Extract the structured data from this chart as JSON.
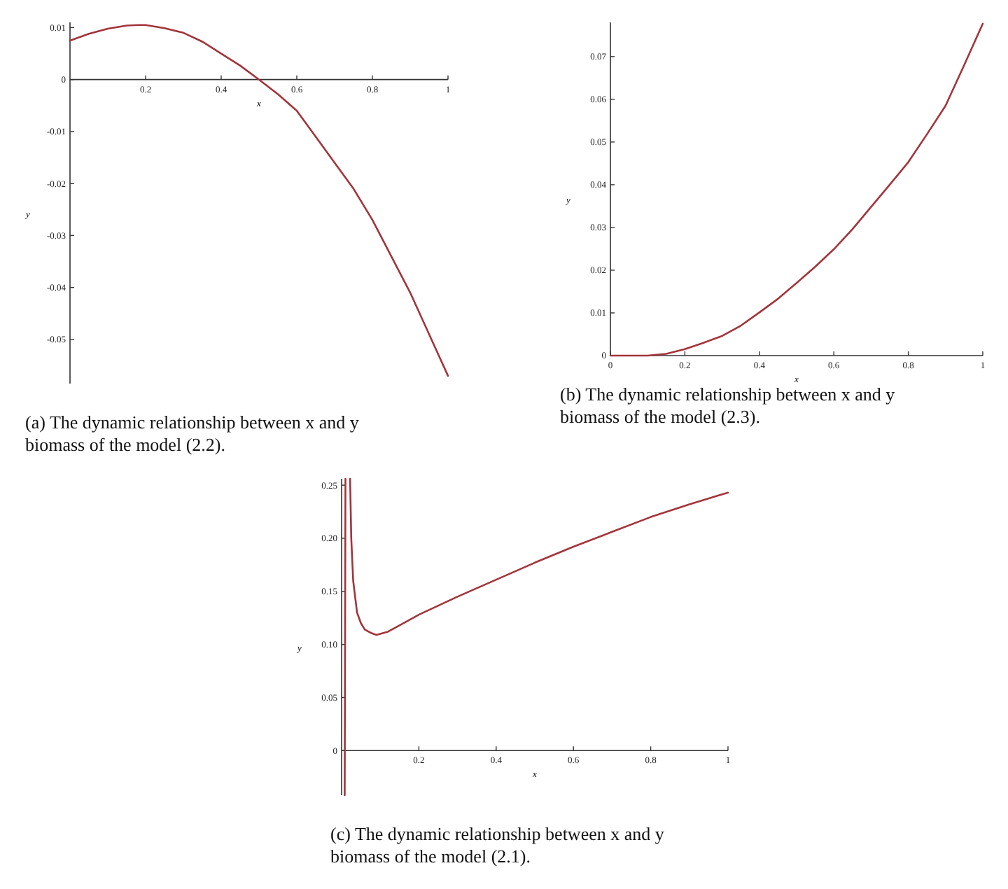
{
  "chart_data": [
    {
      "type": "line",
      "title": "(a) The dynamic relationship between x and y biomass of the model (2.2).",
      "xlabel": "x",
      "ylabel": "y",
      "xlim": [
        0,
        1
      ],
      "ylim": [
        -0.0585,
        0.011
      ],
      "xticks": [
        0.2,
        0.4,
        0.6,
        0.8,
        1
      ],
      "yticks": [
        0.01,
        0,
        -0.01,
        -0.02,
        -0.03,
        -0.04,
        -0.05
      ],
      "series": [
        {
          "color": "#a3343b",
          "x": [
            0,
            0.05,
            0.1,
            0.15,
            0.18,
            0.2,
            0.25,
            0.3,
            0.35,
            0.4,
            0.45,
            0.5,
            0.55,
            0.6,
            0.65,
            0.7,
            0.75,
            0.8,
            0.85,
            0.9,
            0.95,
            1
          ],
          "values": [
            0.0075,
            0.0088,
            0.0098,
            0.0104,
            0.0105,
            0.0105,
            0.0099,
            0.009,
            0.0073,
            0.005,
            0.0027,
            0,
            -0.0028,
            -0.006,
            -0.011,
            -0.016,
            -0.021,
            -0.027,
            -0.034,
            -0.041,
            -0.049,
            -0.057
          ]
        }
      ]
    },
    {
      "type": "line",
      "title": "(b) The dynamic relationship between x and y biomass of the model (2.3).",
      "xlabel": "x",
      "ylabel": "y",
      "xlim": [
        0,
        1
      ],
      "ylim": [
        0,
        0.078
      ],
      "xticks": [
        0,
        0.2,
        0.4,
        0.6,
        0.8,
        1
      ],
      "yticks": [
        0,
        0.01,
        0.02,
        0.03,
        0.04,
        0.05,
        0.06,
        0.07
      ],
      "series": [
        {
          "color": "#a3343b",
          "x": [
            0,
            0.05,
            0.1,
            0.15,
            0.2,
            0.25,
            0.3,
            0.35,
            0.4,
            0.45,
            0.5,
            0.55,
            0.6,
            0.65,
            0.7,
            0.75,
            0.8,
            0.85,
            0.9,
            0.95,
            1
          ],
          "values": [
            0,
            0,
            0,
            0.0004,
            0.0015,
            0.003,
            0.0046,
            0.007,
            0.0101,
            0.0133,
            0.017,
            0.0208,
            0.0249,
            0.0296,
            0.0348,
            0.04,
            0.0453,
            0.0518,
            0.0585,
            0.068,
            0.0777
          ]
        }
      ]
    },
    {
      "type": "line",
      "title": "(c) The dynamic relationship between x and y biomass of the model (2.1).",
      "xlabel": "x",
      "ylabel": "y",
      "xlim": [
        0,
        1
      ],
      "ylim": [
        -0.042,
        0.256
      ],
      "xticks": [
        0.2,
        0.4,
        0.6,
        0.8,
        1
      ],
      "yticks": [
        0,
        0.05,
        {
          "value": 0.1,
          "label": "0.10"
        },
        0.15,
        {
          "value": 0.2,
          "label": "0.20"
        },
        0.25
      ],
      "series": [
        {
          "color": "#a3343b",
          "x": [
            0.022,
            0.025,
            0.03,
            0.04,
            0.05,
            0.06,
            0.075,
            0.09,
            0.12,
            0.15,
            0.2,
            0.3,
            0.4,
            0.5,
            0.6,
            0.7,
            0.8,
            0.9,
            1
          ],
          "values": [
            0.256,
            0.2,
            0.16,
            0.13,
            0.12,
            0.114,
            0.111,
            0.109,
            0.112,
            0.118,
            0.128,
            0.145,
            0.161,
            0.177,
            0.192,
            0.206,
            0.22,
            0.232,
            0.243
          ]
        },
        {
          "color": "#a3343b",
          "x": [
            0.008,
            0.01
          ],
          "values": [
            -0.042,
            0.256
          ]
        }
      ]
    }
  ]
}
